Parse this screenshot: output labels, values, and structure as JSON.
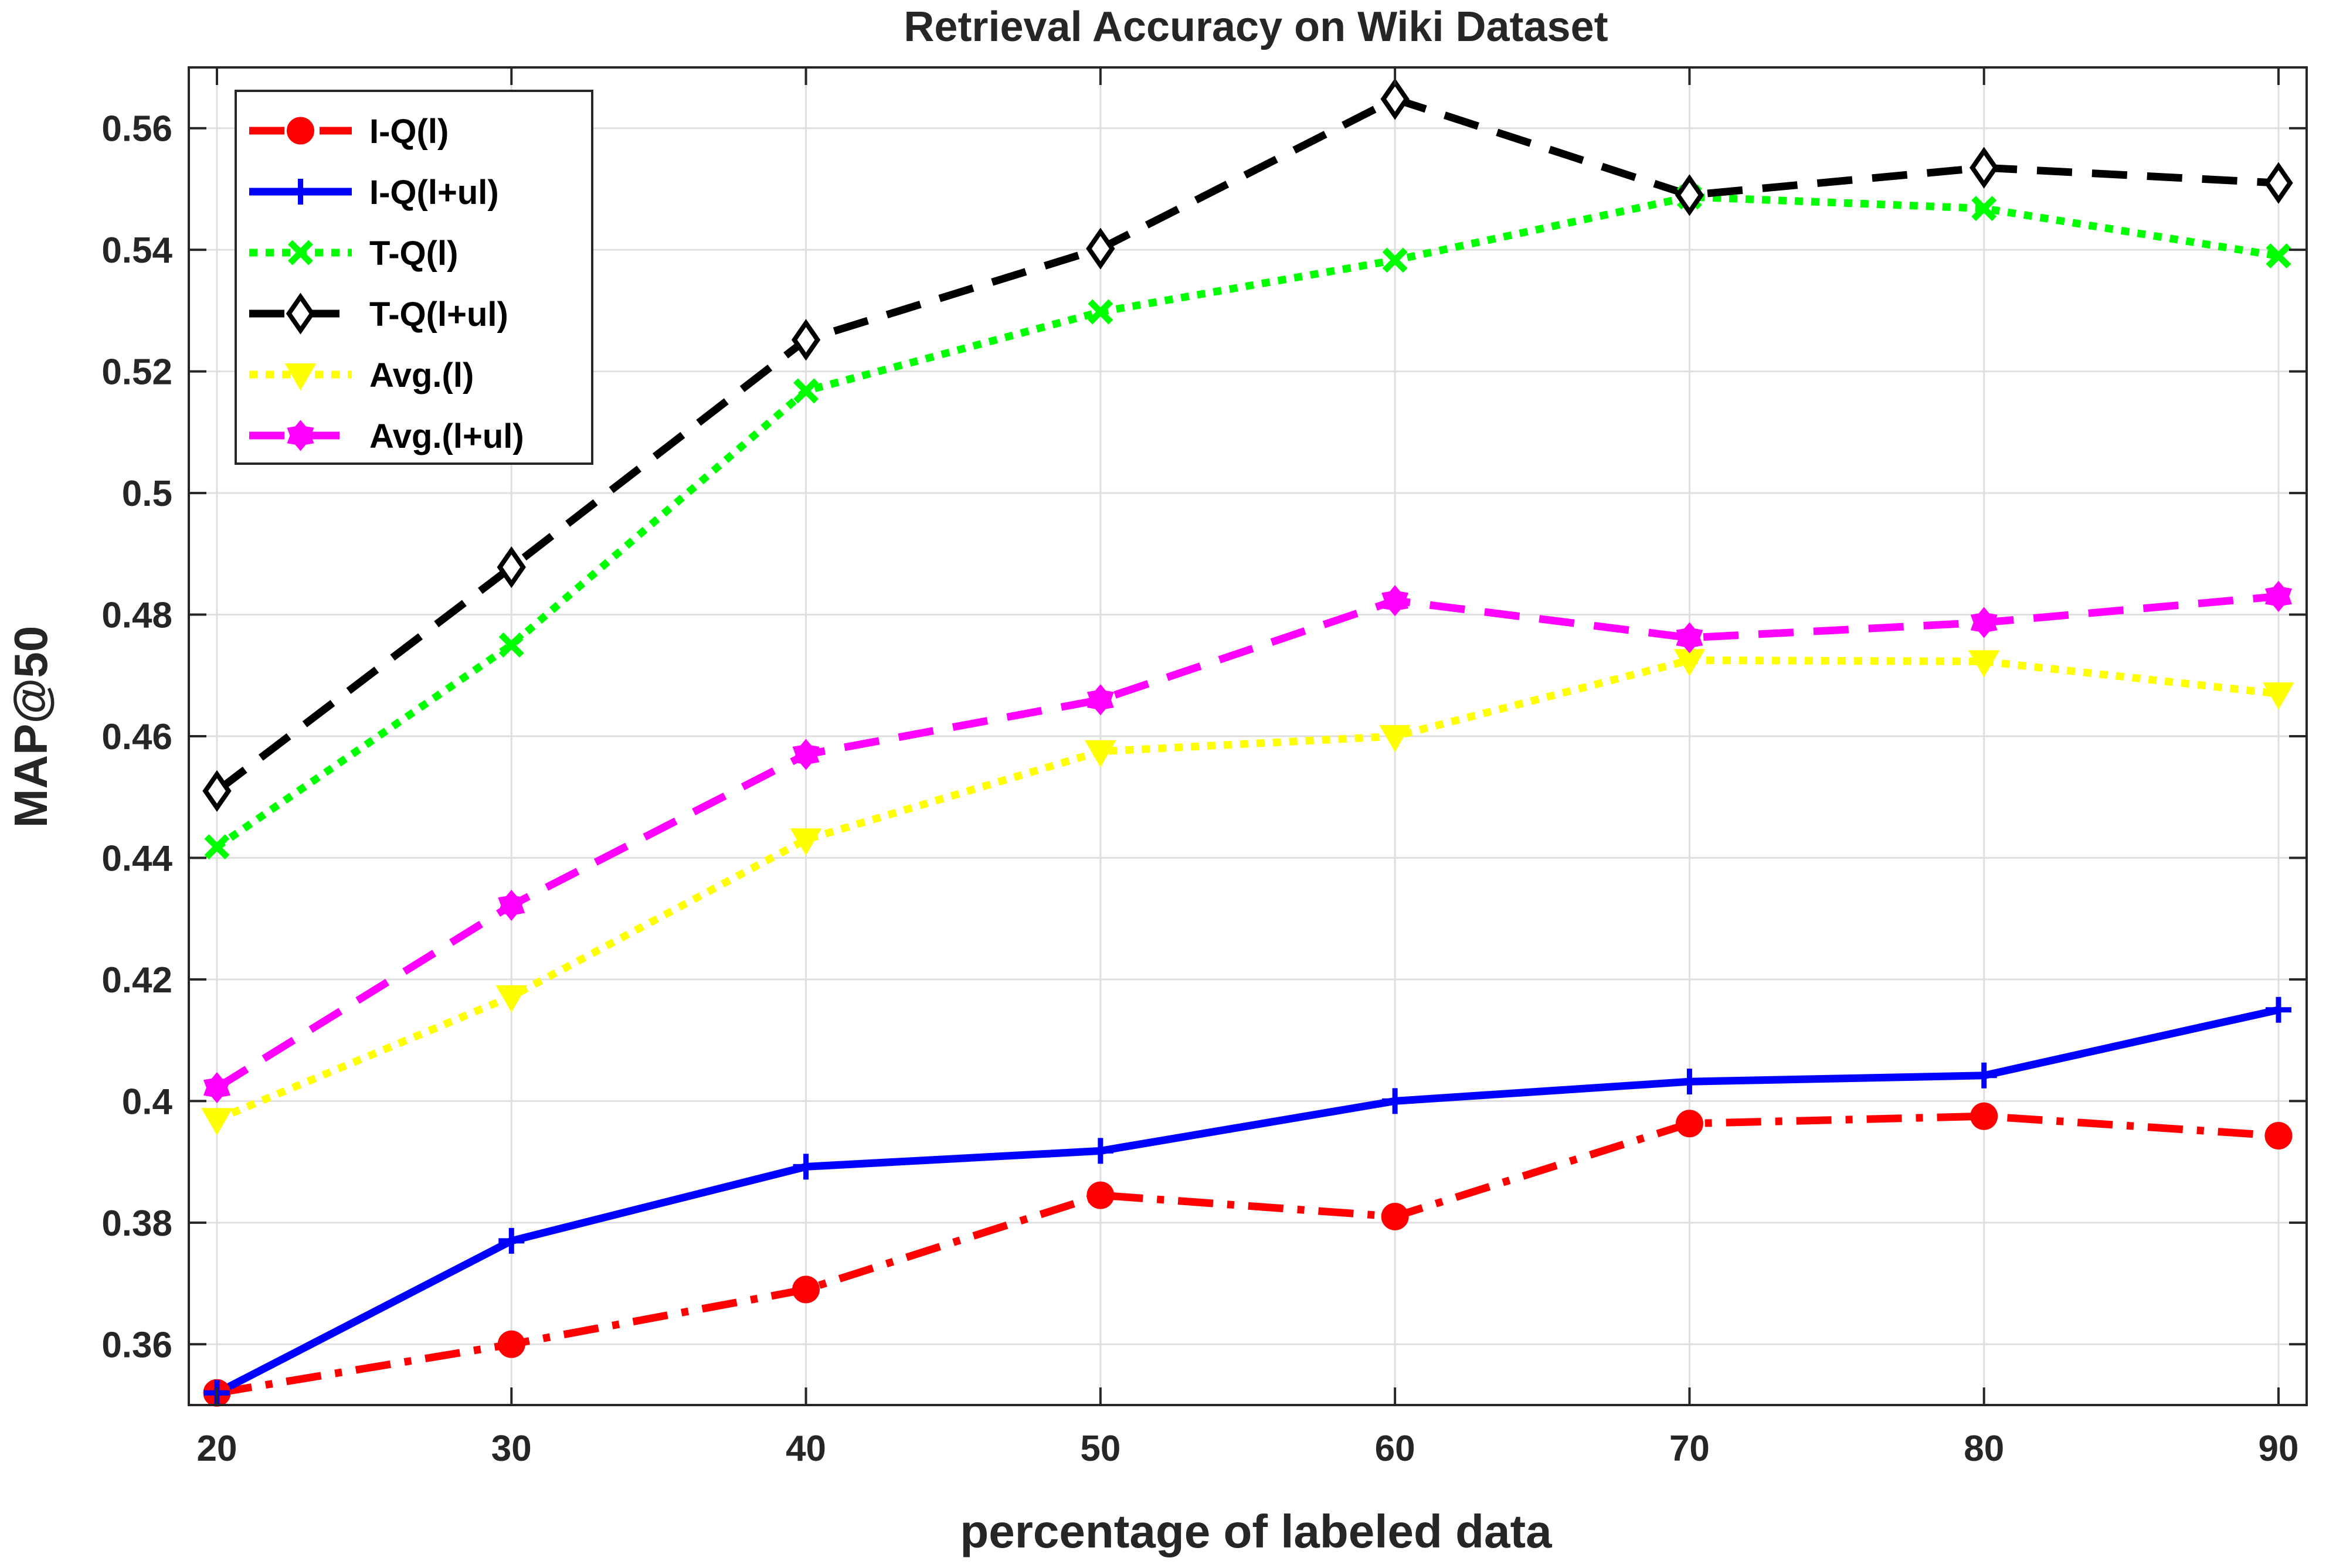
{
  "chart_data": {
    "type": "line",
    "title": "Retrieval Accuracy on Wiki Dataset",
    "xlabel": "percentage of labeled data",
    "ylabel": "MAP@50",
    "x": [
      20,
      30,
      40,
      50,
      60,
      70,
      80,
      90
    ],
    "xlim": [
      20,
      90
    ],
    "ylim": [
      0.35,
      0.57
    ],
    "xticks": [
      20,
      30,
      40,
      50,
      60,
      70,
      80,
      90
    ],
    "xtick_labels": [
      "20",
      "30",
      "40",
      "50",
      "60",
      "70",
      "80",
      "90"
    ],
    "yticks": [
      0.36,
      0.38,
      0.4,
      0.42,
      0.44,
      0.46,
      0.48,
      0.5,
      0.52,
      0.54,
      0.56
    ],
    "ytick_labels": [
      "0.36",
      "0.38",
      "0.4",
      "0.42",
      "0.44",
      "0.46",
      "0.48",
      "0.5",
      "0.52",
      "0.54",
      "0.56"
    ],
    "grid": true,
    "legend_position": "top-left",
    "series": [
      {
        "name": "I-Q(l)",
        "color": "#ff0000",
        "line_style": "dashdot",
        "marker": "circle",
        "values": [
          0.352,
          0.36,
          0.369,
          0.3845,
          0.381,
          0.3963,
          0.3975,
          0.3943
        ]
      },
      {
        "name": "I-Q(l+ul)",
        "color": "#0000ff",
        "line_style": "solid",
        "marker": "plus",
        "values": [
          0.352,
          0.377,
          0.3892,
          0.3918,
          0.4,
          0.4032,
          0.4042,
          0.415
        ]
      },
      {
        "name": "T-Q(l)",
        "color": "#00ff00",
        "line_style": "dotted",
        "marker": "x",
        "values": [
          0.4418,
          0.475,
          0.5168,
          0.5298,
          0.5383,
          0.5487,
          0.5468,
          0.539
        ]
      },
      {
        "name": "T-Q(l+ul)",
        "color": "#000000",
        "line_style": "dashed",
        "marker": "diamond",
        "values": [
          0.451,
          0.4878,
          0.5252,
          0.5402,
          0.5648,
          0.549,
          0.5535,
          0.551
        ]
      },
      {
        "name": "Avg.(l)",
        "color": "#ffff00",
        "line_style": "dotted",
        "marker": "triangle-down",
        "values": [
          0.397,
          0.4172,
          0.443,
          0.4575,
          0.46,
          0.4725,
          0.4723,
          0.467
        ]
      },
      {
        "name": "Avg.(l+ul)",
        "color": "#ff00ff",
        "line_style": "dashed",
        "marker": "hexagram",
        "values": [
          0.4022,
          0.4322,
          0.457,
          0.466,
          0.4823,
          0.4762,
          0.4787,
          0.483
        ]
      }
    ]
  }
}
